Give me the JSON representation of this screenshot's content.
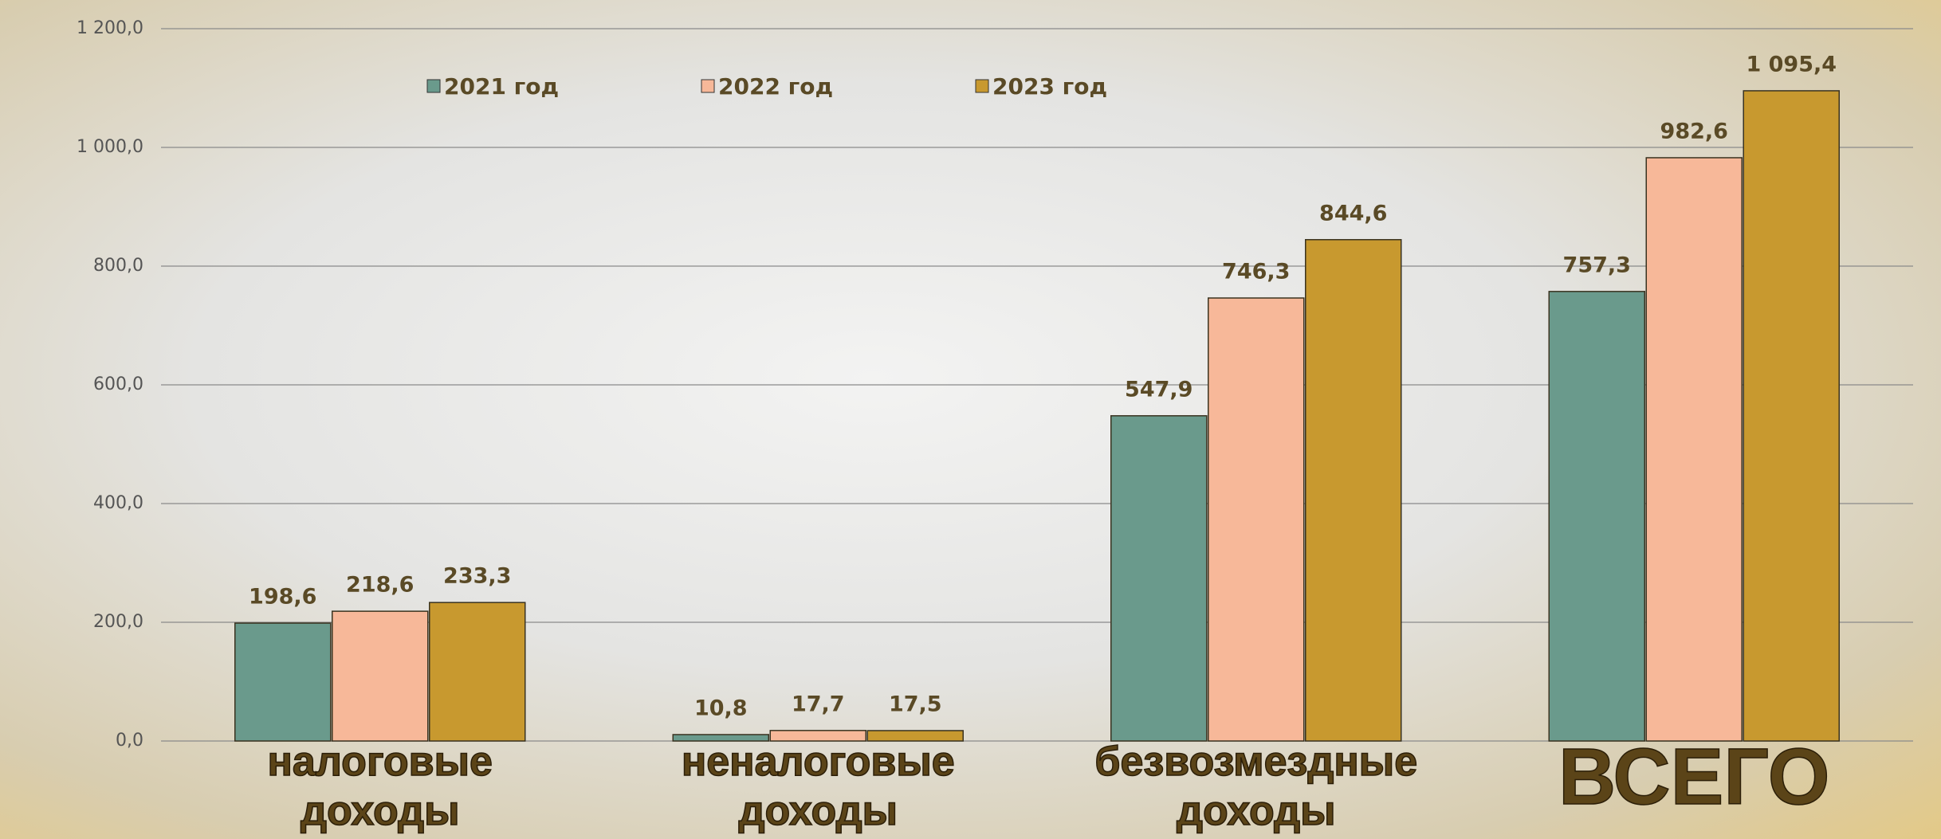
{
  "chart_data": {
    "type": "bar",
    "categories": [
      "налоговые доходы",
      "неналоговые доходы",
      "безвозмездные доходы",
      "ВСЕГО"
    ],
    "series": [
      {
        "name": "2021 год",
        "color": "#6a9a8c",
        "values": [
          198.6,
          10.8,
          547.9,
          757.3
        ],
        "value_labels": [
          "198,6",
          "10,8",
          "547,9",
          "757,3"
        ]
      },
      {
        "name": "2022 год",
        "color": "#f7b899",
        "values": [
          218.6,
          17.7,
          746.3,
          982.6
        ],
        "value_labels": [
          "218,6",
          "17,7",
          "746,3",
          "982,6"
        ]
      },
      {
        "name": "2023 год",
        "color": "#c8992f",
        "values": [
          233.3,
          17.5,
          844.6,
          1095.4
        ],
        "value_labels": [
          "233,3",
          "17,5",
          "844,6",
          "1 095,4"
        ]
      }
    ],
    "ylim": [
      0,
      1200
    ],
    "yticks": [
      {
        "value": 0,
        "label": "0,0"
      },
      {
        "value": 200,
        "label": "200,0"
      },
      {
        "value": 400,
        "label": "400,0"
      },
      {
        "value": 600,
        "label": "600,0"
      },
      {
        "value": 800,
        "label": "800,0"
      },
      {
        "value": 1000,
        "label": "1 000,0"
      },
      {
        "value": 1200,
        "label": "1 200,0"
      }
    ],
    "grid": true
  }
}
